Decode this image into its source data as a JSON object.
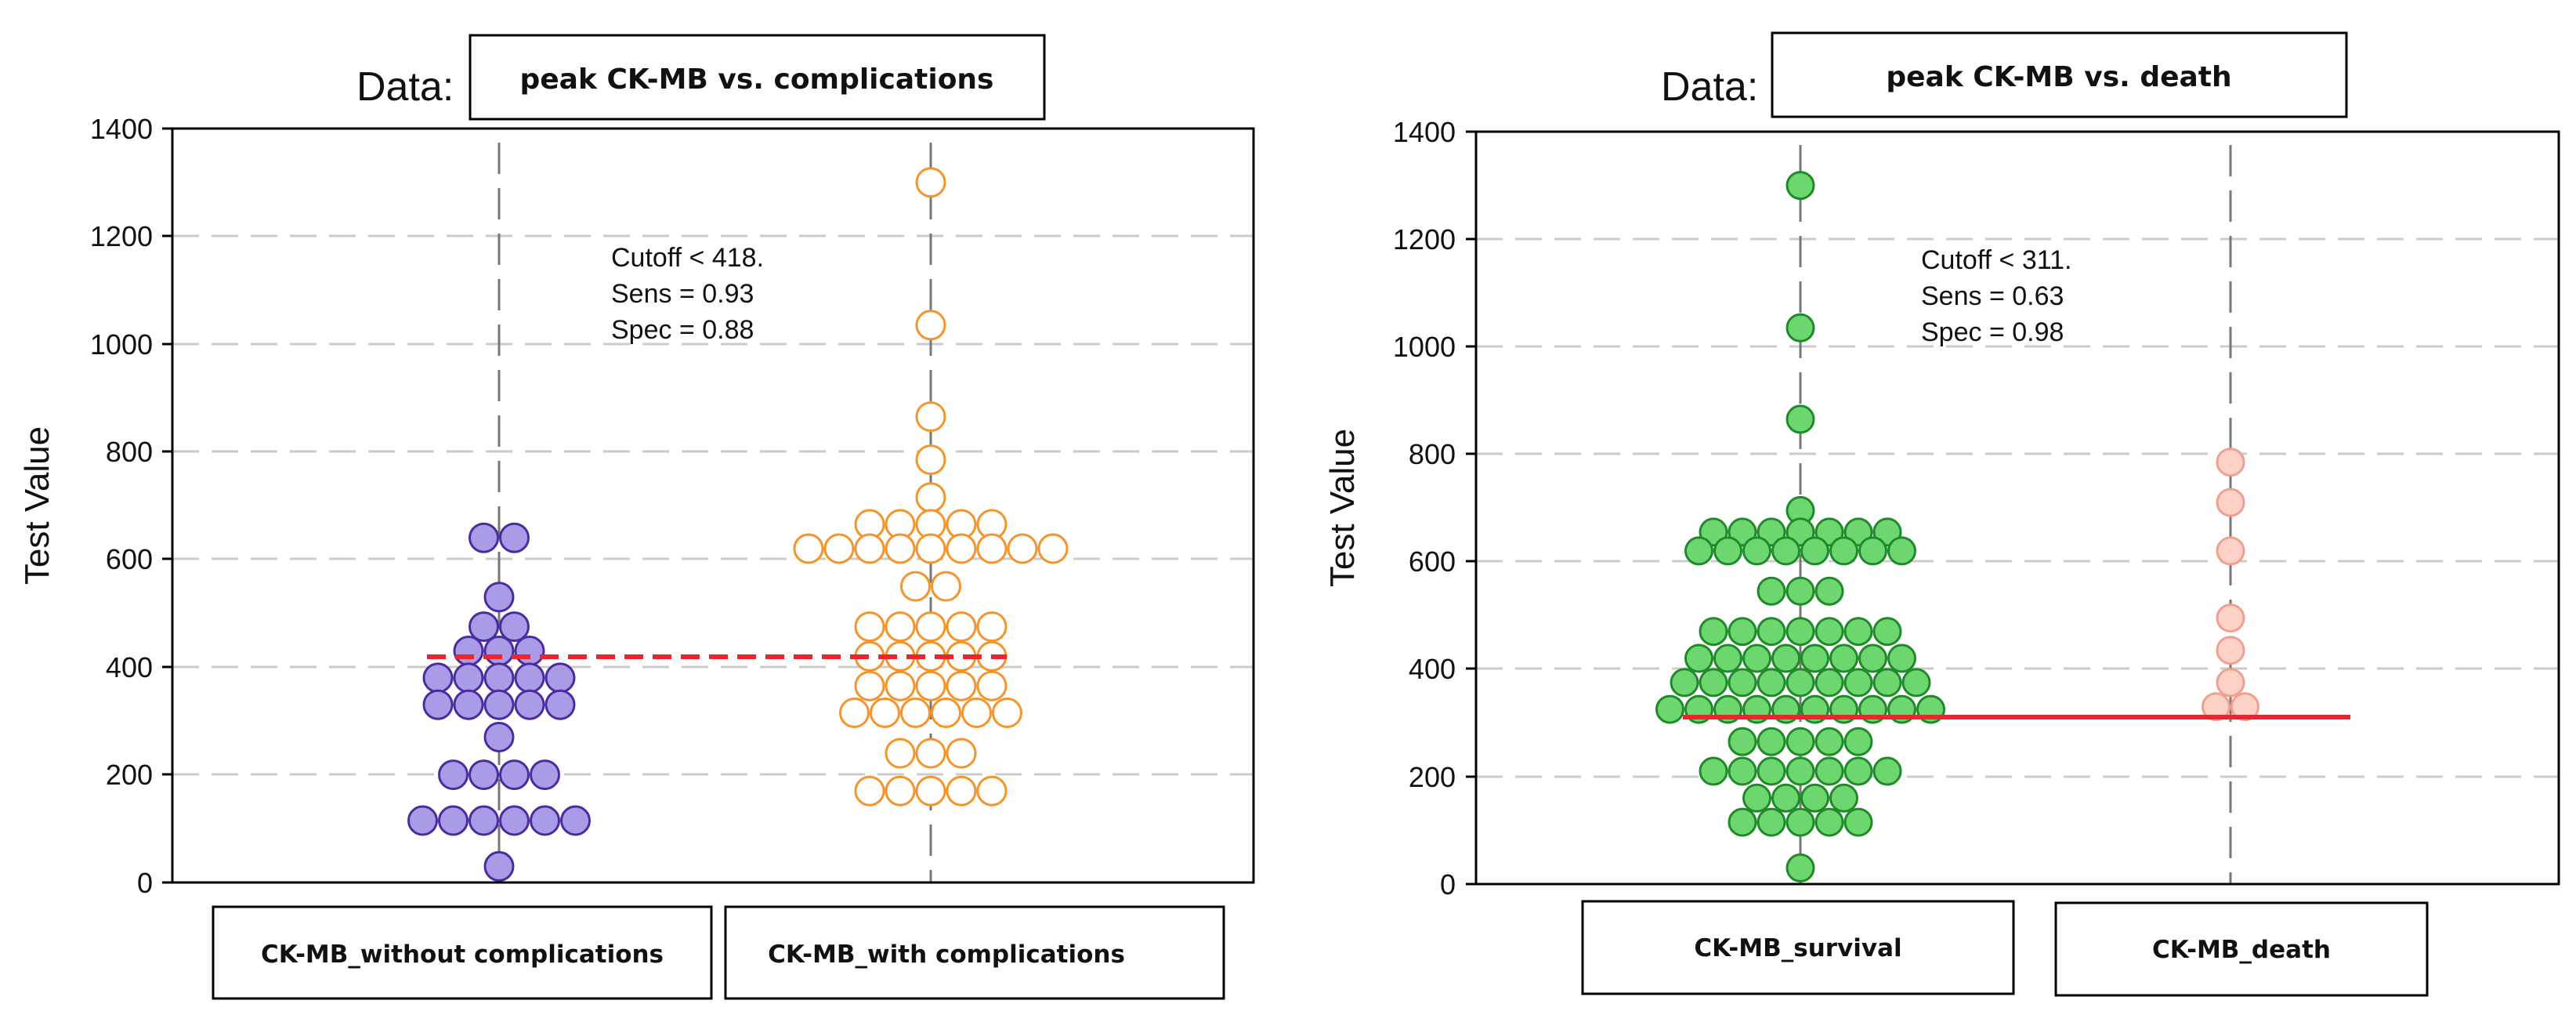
{
  "chart_data": [
    {
      "type": "scatter",
      "subtype": "dot-plot",
      "data_label": "Data:",
      "title": "peak CK-MB vs. complications",
      "ylabel": "Test Value",
      "ylim": [
        0,
        1400
      ],
      "yticks": [
        0,
        200,
        400,
        600,
        800,
        1000,
        1200,
        1400
      ],
      "grid": true,
      "categories": [
        "CK-MB_without complications",
        "CK-MB_with complications"
      ],
      "cutoff": {
        "value": 418,
        "style": "dashed",
        "color": "#e8262b"
      },
      "annotation": [
        "Cutoff < 418.",
        "Sens = 0.93",
        "Spec = 0.88"
      ],
      "series": [
        {
          "name": "CK-MB_without complications",
          "fill": "#a99be6",
          "stroke": "#4b2ca0",
          "values": [
            640,
            640,
            530,
            475,
            475,
            430,
            430,
            430,
            380,
            380,
            380,
            380,
            380,
            330,
            330,
            330,
            330,
            330,
            270,
            200,
            200,
            200,
            200,
            115,
            115,
            115,
            115,
            115,
            115,
            30
          ]
        },
        {
          "name": "CK-MB_with complications",
          "fill": "#ffffff",
          "stroke": "#f5942a",
          "values": [
            1300,
            1035,
            865,
            785,
            715,
            665,
            665,
            665,
            665,
            665,
            620,
            620,
            620,
            620,
            620,
            620,
            620,
            620,
            620,
            550,
            550,
            475,
            475,
            475,
            475,
            475,
            420,
            420,
            420,
            420,
            420,
            365,
            365,
            365,
            365,
            365,
            315,
            315,
            315,
            315,
            315,
            315,
            240,
            240,
            240,
            170,
            170,
            170,
            170,
            170
          ]
        }
      ]
    },
    {
      "type": "scatter",
      "subtype": "dot-plot",
      "data_label": "Data:",
      "title": "peak CK-MB vs. death",
      "ylabel": "Test Value",
      "ylim": [
        0,
        1400
      ],
      "yticks": [
        0,
        200,
        400,
        600,
        800,
        1000,
        1200,
        1400
      ],
      "grid": true,
      "categories": [
        "CK-MB_survival",
        "CK-MB_death"
      ],
      "cutoff": {
        "value": 311,
        "style": "solid",
        "color": "#e8262b"
      },
      "annotation": [
        "Cutoff < 311.",
        "Sens = 0.63",
        "Spec = 0.98"
      ],
      "series": [
        {
          "name": "CK-MB_survival",
          "fill": "#6ed66e",
          "stroke": "#1f8a2a",
          "values": [
            1300,
            1035,
            865,
            695,
            655,
            655,
            655,
            655,
            655,
            655,
            655,
            620,
            620,
            620,
            620,
            620,
            620,
            620,
            620,
            545,
            545,
            545,
            470,
            470,
            470,
            470,
            470,
            470,
            470,
            420,
            420,
            420,
            420,
            420,
            420,
            420,
            420,
            375,
            375,
            375,
            375,
            375,
            375,
            375,
            375,
            375,
            325,
            325,
            325,
            325,
            325,
            325,
            325,
            325,
            325,
            325,
            265,
            265,
            265,
            265,
            265,
            210,
            210,
            210,
            210,
            210,
            210,
            210,
            160,
            160,
            160,
            160,
            115,
            115,
            115,
            115,
            115,
            30
          ]
        },
        {
          "name": "CK-MB_death",
          "fill": "#fdd2c6",
          "stroke": "#f0a090",
          "values": [
            785,
            710,
            620,
            495,
            435,
            375,
            330,
            330
          ]
        }
      ]
    }
  ]
}
